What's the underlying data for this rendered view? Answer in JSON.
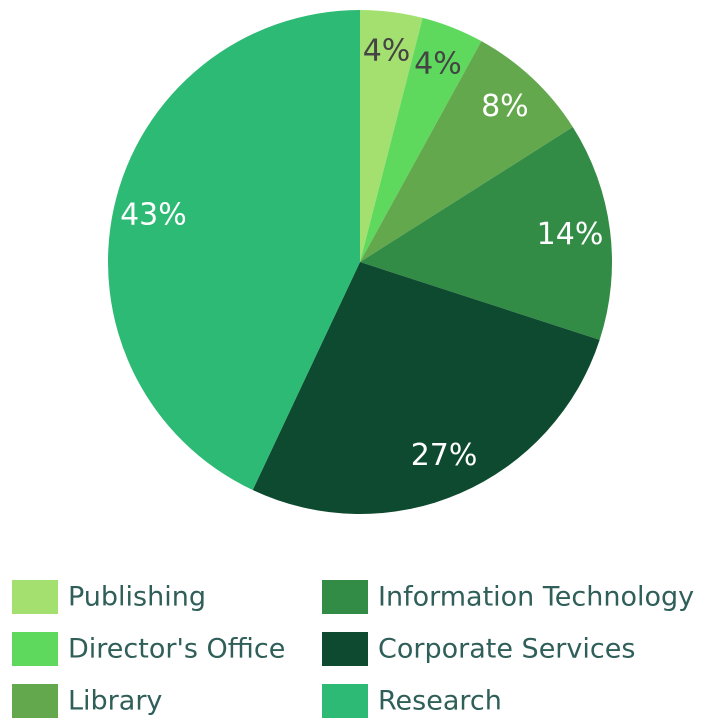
{
  "chart_data": {
    "type": "pie",
    "categories": [
      "Publishing",
      "Director's Office",
      "Library",
      "Information Technology",
      "Corporate Services",
      "Research"
    ],
    "values": [
      4,
      4,
      8,
      14,
      27,
      43
    ],
    "value_labels": [
      "4%",
      "4%",
      "8%",
      "14%",
      "27%",
      "43%"
    ],
    "colors": [
      "#a3e06f",
      "#5ed95e",
      "#64a84e",
      "#338c46",
      "#0d4a2f",
      "#2cba74"
    ],
    "legend": "bottom"
  }
}
